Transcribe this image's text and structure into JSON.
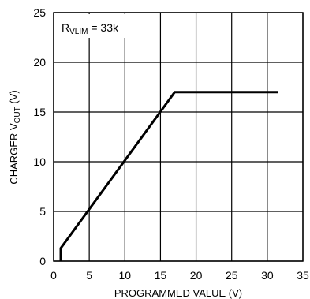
{
  "chart_data": {
    "type": "line",
    "title": "",
    "xlabel": "PROGRAMMED VALUE (V)",
    "ylabel": "CHARGER V",
    "ylabel_sub": "OUT",
    "ylabel_suffix": " (V)",
    "xlim": [
      0,
      35
    ],
    "ylim": [
      0,
      25
    ],
    "xticks": [
      "0",
      "5",
      "10",
      "15",
      "20",
      "25",
      "30",
      "35"
    ],
    "yticks": [
      "0",
      "5",
      "10",
      "15",
      "20",
      "25"
    ],
    "grid": true,
    "annotation": {
      "main": "R",
      "sub": "VLIM",
      "rest": " = 33k"
    },
    "series": [
      {
        "x": [
          1,
          1,
          17,
          31.5
        ],
        "y": [
          0,
          1.3,
          17,
          17
        ]
      }
    ],
    "colors": {
      "line": "#000000",
      "grid": "#000000",
      "background": "#ffffff"
    }
  }
}
